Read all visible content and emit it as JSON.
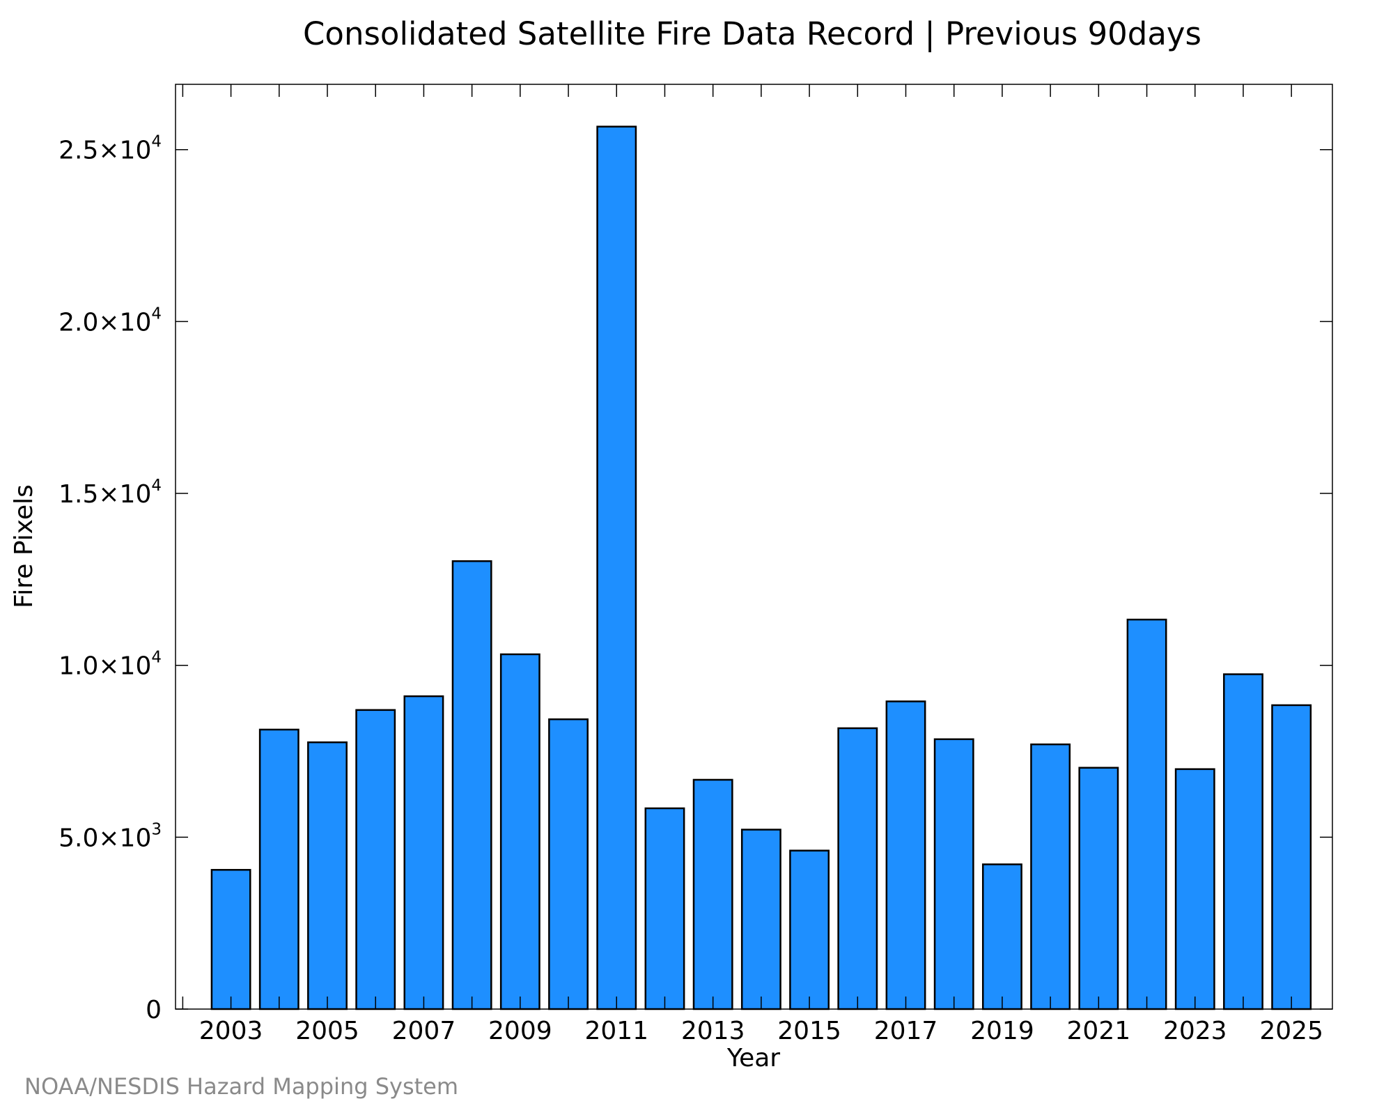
{
  "title": "Consolidated Satellite Fire Data Record | Previous 90days",
  "credit": "NOAA/NESDIS Hazard Mapping System",
  "colors": {
    "bar_fill": "#1e8fff",
    "bar_stroke": "#000000",
    "credit": "#8a8a8a"
  },
  "chart_data": {
    "type": "bar",
    "title": "Consolidated Satellite Fire Data Record | Previous 90days",
    "xlabel": "Year",
    "ylabel": "Fire Pixels",
    "categories": [
      "2003",
      "2004",
      "2005",
      "2006",
      "2007",
      "2008",
      "2009",
      "2010",
      "2011",
      "2012",
      "2013",
      "2014",
      "2015",
      "2016",
      "2017",
      "2018",
      "2019",
      "2020",
      "2021",
      "2022",
      "2023",
      "2024",
      "2025"
    ],
    "values": [
      4050,
      8130,
      7760,
      8700,
      9100,
      13030,
      10320,
      8430,
      25670,
      5840,
      6670,
      5220,
      4610,
      8170,
      8950,
      7850,
      4210,
      7700,
      7020,
      11330,
      6980,
      9740,
      8840
    ],
    "ylim": [
      0,
      26900
    ],
    "xlim": [
      2001.85,
      2025.85
    ],
    "x_tick_labels": [
      "2003",
      "2005",
      "2007",
      "2009",
      "2011",
      "2013",
      "2015",
      "2017",
      "2019",
      "2021",
      "2023",
      "2025"
    ],
    "y_ticks": [
      {
        "value": 0,
        "mantissa": "0",
        "exp": ""
      },
      {
        "value": 5000,
        "mantissa": "5.0×10",
        "exp": "3"
      },
      {
        "value": 10000,
        "mantissa": "1.0×10",
        "exp": "4"
      },
      {
        "value": 15000,
        "mantissa": "1.5×10",
        "exp": "4"
      },
      {
        "value": 20000,
        "mantissa": "2.0×10",
        "exp": "4"
      },
      {
        "value": 25000,
        "mantissa": "2.5×10",
        "exp": "4"
      }
    ],
    "grid": false,
    "legend": "none"
  }
}
